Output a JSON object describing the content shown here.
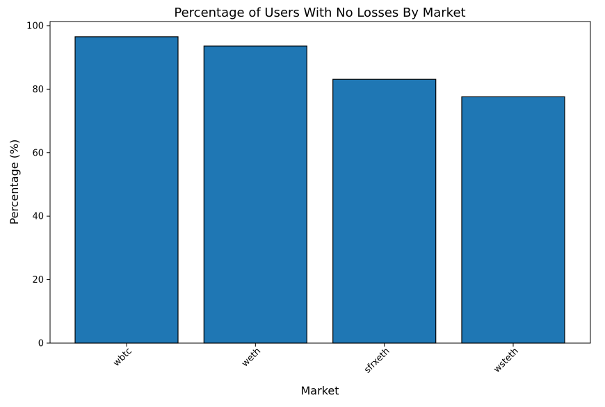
{
  "chart_data": {
    "type": "bar",
    "title": "Percentage of Users With No Losses By Market",
    "xlabel": "Market",
    "ylabel": "Percentage (%)",
    "categories": [
      "wbtc",
      "weth",
      "sfrxeth",
      "wsteth"
    ],
    "values": [
      96.5,
      93.6,
      83.1,
      77.6
    ],
    "ylim": [
      0,
      101.3
    ],
    "yticks": [
      "0",
      "20",
      "40",
      "60",
      "80",
      "100"
    ],
    "grid": false,
    "legend": "none",
    "bar_color": "#1f77b4",
    "bar_edge_color": "#000000",
    "xtick_rotation_deg": 45
  }
}
